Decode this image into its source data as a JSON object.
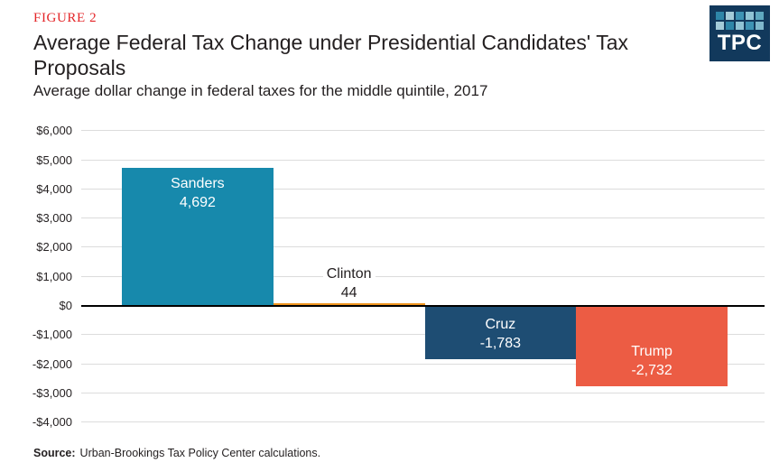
{
  "header": {
    "figure_label": "FIGURE 2",
    "title": "Average Federal Tax Change under Presidential Candidates' Tax Proposals",
    "subtitle": "Average dollar change in federal taxes for the middle quintile, 2017"
  },
  "logo": {
    "text": "TPC",
    "bg_color": "#12395C",
    "square_colors": [
      "#2E86A8",
      "#A3CBD8",
      "#3E93B4",
      "#8FC3D4",
      "#5FA8C0",
      "#A3CBD8",
      "#2E86A8",
      "#8FC3D4",
      "#3E93B4",
      "#7FB8CC"
    ]
  },
  "chart_data": {
    "type": "bar",
    "title": "Average Federal Tax Change under Presidential Candidates' Tax Proposals",
    "subtitle": "Average dollar change in federal taxes for the middle quintile, 2017",
    "categories": [
      "Sanders",
      "Clinton",
      "Cruz",
      "Trump"
    ],
    "values": [
      4692,
      44,
      -1783,
      -2732
    ],
    "value_labels": [
      "4,692",
      "44",
      "-1,783",
      "-2,732"
    ],
    "bar_colors": [
      "#1789AC",
      "#EF941E",
      "#1E4D73",
      "#EC5C44"
    ],
    "ylim": [
      -4000,
      6000
    ],
    "grid": true,
    "gridline_color": "#DCDCDC",
    "zero_line_color": "#000000",
    "legend": "none",
    "yticks": [
      {
        "label": "$6,000",
        "value": 6000
      },
      {
        "label": "$5,000",
        "value": 5000
      },
      {
        "label": "$4,000",
        "value": 4000
      },
      {
        "label": "$3,000",
        "value": 3000
      },
      {
        "label": "$2,000",
        "value": 2000
      },
      {
        "label": "$1,000",
        "value": 1000
      },
      {
        "label": "$0",
        "value": 0
      },
      {
        "label": "-$1,000",
        "value": -1000
      },
      {
        "label": "-$2,000",
        "value": -2000
      },
      {
        "label": "-$3,000",
        "value": -3000
      },
      {
        "label": "-$4,000",
        "value": -4000
      }
    ]
  },
  "source": {
    "label": "Source:",
    "text": "Urban-Brookings Tax Policy Center calculations."
  }
}
